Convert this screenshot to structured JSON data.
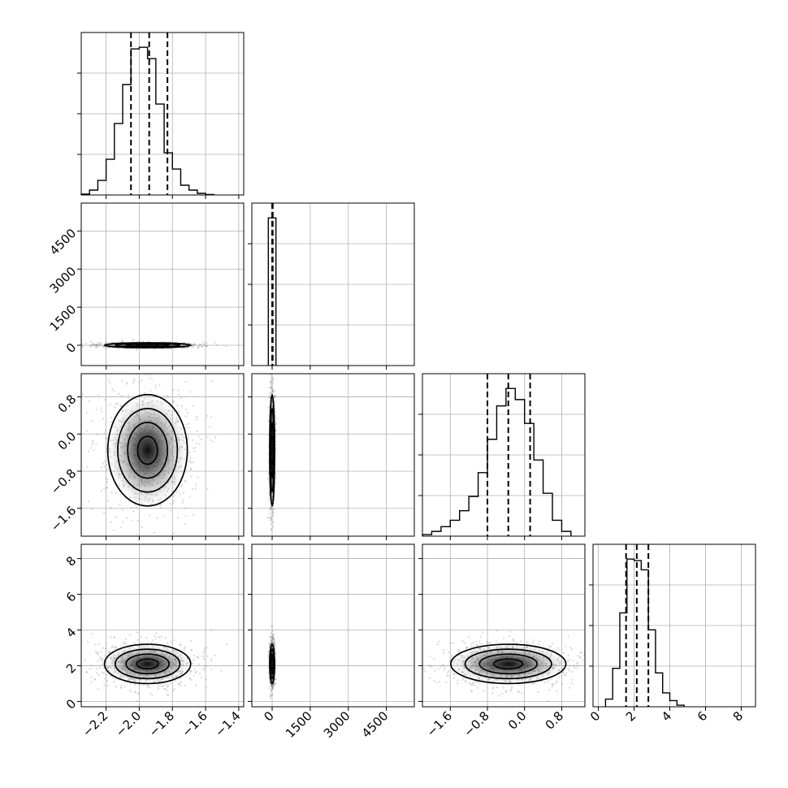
{
  "chart_data": {
    "type": "corner",
    "parameters": 4,
    "grid": true,
    "ticks": {
      "p0": {
        "values": [
          -2.2,
          -2.0,
          -1.8,
          -1.6,
          -1.4
        ],
        "labels": [
          "−2.2",
          "−2.0",
          "−1.8",
          "−1.6",
          "−1.4"
        ],
        "range": [
          -2.35,
          -1.37
        ]
      },
      "p1": {
        "values": [
          0,
          1500,
          3000,
          4500
        ],
        "labels": [
          "0",
          "1500",
          "3000",
          "4500"
        ],
        "range": [
          -800,
          5600
        ]
      },
      "p2": {
        "values": [
          -1.6,
          -0.8,
          0.0,
          0.8
        ],
        "labels": [
          "−1.6",
          "−0.8",
          "0.0",
          "0.8"
        ],
        "range": [
          -2.2,
          1.3
        ]
      },
      "p3": {
        "values": [
          0,
          2,
          4,
          6,
          8
        ],
        "labels": [
          "0",
          "2",
          "4",
          "6",
          "8"
        ],
        "range": [
          -0.3,
          8.8
        ]
      }
    },
    "quantiles": {
      "p0": [
        -2.05,
        -1.94,
        -1.83
      ],
      "p1": [
        2,
        12,
        24
      ],
      "p2": [
        -0.8,
        -0.35,
        0.12
      ],
      "p3": [
        1.55,
        2.15,
        2.8
      ]
    },
    "histograms": {
      "p0": {
        "edges": [
          -2.35,
          -2.3,
          -2.25,
          -2.2,
          -2.15,
          -2.1,
          -2.05,
          -2.0,
          -1.95,
          -1.9,
          -1.85,
          -1.8,
          -1.75,
          -1.7,
          -1.65,
          -1.6,
          -1.55
        ],
        "counts": [
          0.5,
          3,
          9,
          22,
          44,
          68,
          90,
          91,
          84,
          56,
          26,
          16,
          6,
          3,
          1,
          0.3
        ]
      },
      "p1": {
        "edges": [
          -150,
          0,
          150
        ],
        "counts": [
          97,
          97
        ]
      },
      "p2": {
        "edges": [
          -2.2,
          -2.0,
          -1.8,
          -1.6,
          -1.4,
          -1.2,
          -1.0,
          -0.8,
          -0.6,
          -0.4,
          -0.2,
          0.0,
          0.2,
          0.4,
          0.6,
          0.8,
          1.0
        ],
        "counts": [
          1,
          3,
          6,
          10,
          16,
          25,
          40,
          61,
          82,
          93,
          86,
          71,
          48,
          27,
          10,
          3
        ]
      },
      "p3": {
        "edges": [
          0.4,
          0.8,
          1.2,
          1.6,
          2.0,
          2.4,
          2.8,
          3.2,
          3.6,
          4.0,
          4.4,
          4.8
        ],
        "counts": [
          5,
          25,
          61,
          96,
          95,
          89,
          50,
          22,
          9,
          4,
          1
        ]
      }
    },
    "panels_2d": [
      {
        "x": "p0",
        "y": "p1",
        "center": [
          -1.95,
          0
        ],
        "spread": [
          0.13,
          40
        ]
      },
      {
        "x": "p0",
        "y": "p2",
        "center": [
          -1.95,
          -0.35
        ],
        "spread": [
          0.12,
          0.6
        ]
      },
      {
        "x": "p1",
        "y": "p2",
        "center": [
          0,
          -0.35
        ],
        "spread": [
          35,
          0.6
        ]
      },
      {
        "x": "p0",
        "y": "p3",
        "center": [
          -1.95,
          2.1
        ],
        "spread": [
          0.13,
          0.55
        ]
      },
      {
        "x": "p1",
        "y": "p3",
        "center": [
          0,
          2.1
        ],
        "spread": [
          35,
          0.55
        ]
      },
      {
        "x": "p2",
        "y": "p3",
        "center": [
          -0.35,
          2.1
        ],
        "spread": [
          0.62,
          0.55
        ]
      }
    ]
  }
}
